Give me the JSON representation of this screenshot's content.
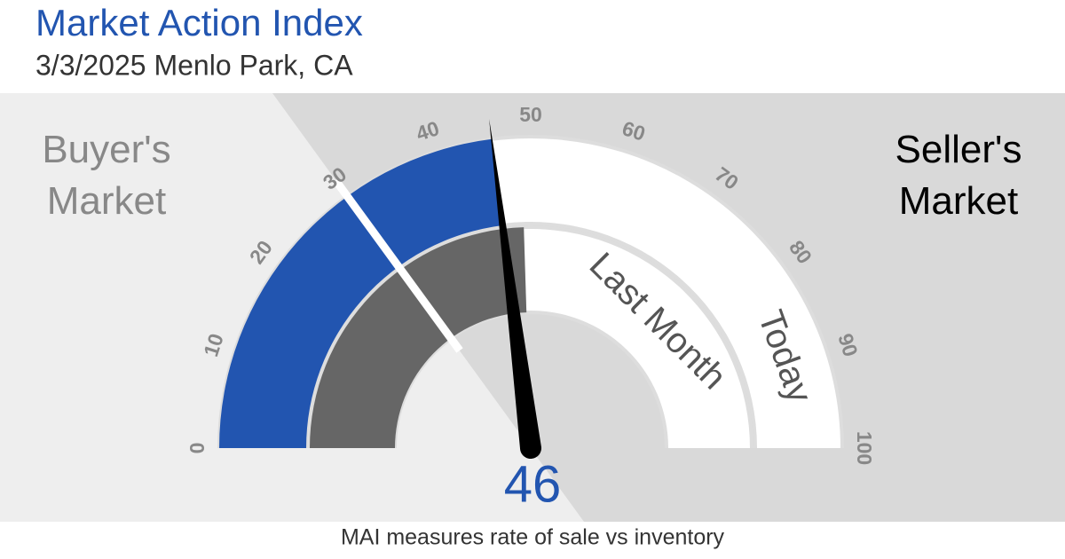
{
  "chart_data": {
    "type": "gauge",
    "title": "Market Action Index",
    "subtitle": "3/3/2025 Menlo Park, CA",
    "left_label": "Buyer's Market",
    "right_label": "Seller's Market",
    "caption": "MAI measures rate of sale vs inventory",
    "ylim": [
      0,
      100
    ],
    "yticks": [
      0,
      10,
      20,
      30,
      40,
      50,
      60,
      70,
      80,
      90,
      100
    ],
    "needle_color": "#000000",
    "series": [
      {
        "name": "Today",
        "color": "#2255b0",
        "values": [
          46
        ]
      },
      {
        "name": "Last Month",
        "color": "#666666",
        "values": [
          49
        ]
      }
    ]
  }
}
